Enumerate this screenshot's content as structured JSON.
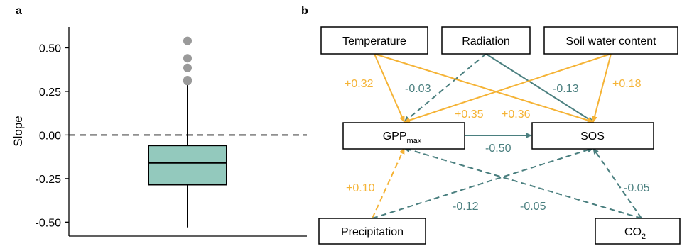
{
  "panel_a": {
    "label": "a",
    "ylabel": "Slope",
    "colors": {
      "box_fill": "#93c9bd",
      "outlier": "#9a9a9a",
      "line": "#000000"
    }
  },
  "panel_b": {
    "label": "b",
    "nodes": {
      "temperature": "Temperature",
      "radiation": "Radiation",
      "soil_water": "Soil water content",
      "gpp_main": "GPP",
      "gpp_sub": "max",
      "sos": "SOS",
      "precipitation": "Precipitation",
      "co2_main": "CO",
      "co2_sub": "2"
    },
    "edges": [
      {
        "from": "temperature",
        "to": "gpp",
        "label": "+0.32",
        "sign": "positive",
        "style": "solid"
      },
      {
        "from": "radiation",
        "to": "gpp",
        "label": "-0.03",
        "sign": "negative",
        "style": "dashed"
      },
      {
        "from": "radiation",
        "to": "sos",
        "label": "-0.13",
        "sign": "negative",
        "style": "solid"
      },
      {
        "from": "soil_water",
        "to": "sos",
        "label": "+0.18",
        "sign": "positive",
        "style": "solid"
      },
      {
        "from": "soil_water",
        "to": "gpp",
        "label": "+0.35",
        "sign": "positive",
        "style": "solid"
      },
      {
        "from": "temperature",
        "to": "sos",
        "label": "+0.36",
        "sign": "positive",
        "style": "solid"
      },
      {
        "from": "gpp",
        "to": "sos",
        "label": "-0.50",
        "sign": "negative",
        "style": "solid"
      },
      {
        "from": "precipitation",
        "to": "gpp",
        "label": "+0.10",
        "sign": "positive",
        "style": "dashed"
      },
      {
        "from": "precipitation",
        "to": "sos",
        "label": "-0.12",
        "sign": "negative",
        "style": "dashed"
      },
      {
        "from": "co2",
        "to": "gpp",
        "label": "-0.05",
        "sign": "negative",
        "style": "dashed"
      },
      {
        "from": "co2",
        "to": "sos",
        "label": "-0.05",
        "sign": "negative",
        "style": "dashed"
      }
    ],
    "colors": {
      "positive": "#f5b335",
      "negative": "#4a7f7f"
    }
  },
  "chart_data": {
    "type": "box",
    "ylabel": "Slope",
    "ylim": [
      -0.58,
      0.62
    ],
    "yticks": [
      0.5,
      0.25,
      0.0,
      -0.25,
      -0.5
    ],
    "ytick_labels": [
      "0.50",
      "0.25",
      "0.00",
      "-0.25",
      "-0.50"
    ],
    "reference_line": {
      "y": 0.0,
      "style": "dashed"
    },
    "box": {
      "whisker_low": -0.53,
      "q1": -0.285,
      "median": -0.16,
      "q3": -0.06,
      "whisker_high": 0.3,
      "outliers": [
        0.54,
        0.44,
        0.385,
        0.315,
        0.31
      ]
    }
  }
}
